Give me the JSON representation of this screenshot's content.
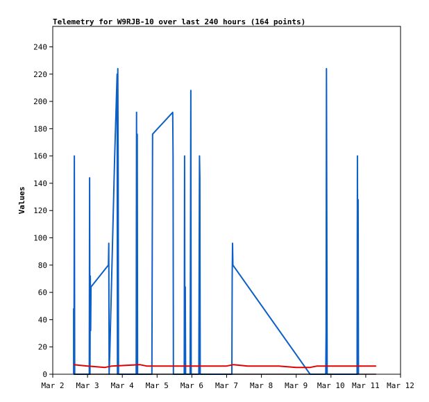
{
  "chart_data": {
    "type": "line",
    "title": "Telemetry for W9RJB-10 over last 240 hours (164 points)",
    "xlabel": "",
    "ylabel": "Values",
    "x_ticks": [
      "Mar 2",
      "Mar 3",
      "Mar 4",
      "Mar 5",
      "Mar 6",
      "Mar 7",
      "Mar 8",
      "Mar 9",
      "Mar 10",
      "Mar 11",
      "Mar 12"
    ],
    "y_ticks": [
      "0",
      "20",
      "40",
      "60",
      "80",
      "100",
      "120",
      "140",
      "160",
      "180",
      "200",
      "220",
      "240"
    ],
    "xlim": [
      2,
      12
    ],
    "ylim": [
      0,
      255
    ],
    "grid": false,
    "legend": "none",
    "series": [
      {
        "color": "#0b5fc6",
        "points": [
          [
            2.6,
            0
          ],
          [
            2.6,
            48
          ],
          [
            2.61,
            0
          ],
          [
            2.62,
            160
          ],
          [
            2.63,
            0
          ],
          [
            3.05,
            0
          ],
          [
            3.06,
            144
          ],
          [
            3.07,
            0
          ],
          [
            3.08,
            72
          ],
          [
            3.09,
            32
          ],
          [
            3.1,
            64
          ],
          [
            3.6,
            80
          ],
          [
            3.61,
            96
          ],
          [
            3.62,
            0
          ],
          [
            3.64,
            16
          ],
          [
            3.78,
            160
          ],
          [
            3.85,
            220
          ],
          [
            3.86,
            0
          ],
          [
            3.87,
            224
          ],
          [
            3.88,
            160
          ],
          [
            3.89,
            0
          ],
          [
            4.4,
            0
          ],
          [
            4.41,
            192
          ],
          [
            4.42,
            0
          ],
          [
            4.43,
            176
          ],
          [
            4.44,
            0
          ],
          [
            4.85,
            0
          ],
          [
            4.86,
            88
          ],
          [
            4.87,
            176
          ],
          [
            5.45,
            192
          ],
          [
            5.46,
            160
          ],
          [
            5.47,
            0
          ],
          [
            5.78,
            0
          ],
          [
            5.79,
            160
          ],
          [
            5.8,
            0
          ],
          [
            5.81,
            64
          ],
          [
            5.82,
            0
          ],
          [
            5.95,
            0
          ],
          [
            5.96,
            96
          ],
          [
            5.97,
            208
          ],
          [
            5.98,
            0
          ],
          [
            6.2,
            0
          ],
          [
            6.21,
            80
          ],
          [
            6.22,
            160
          ],
          [
            6.23,
            144
          ],
          [
            6.24,
            0
          ],
          [
            7.15,
            0
          ],
          [
            7.16,
            72
          ],
          [
            7.17,
            96
          ],
          [
            7.18,
            80
          ],
          [
            9.4,
            0
          ],
          [
            9.85,
            0
          ],
          [
            9.86,
            32
          ],
          [
            9.87,
            224
          ],
          [
            9.88,
            112
          ],
          [
            9.89,
            0
          ],
          [
            10.75,
            0
          ],
          [
            10.76,
            160
          ],
          [
            10.77,
            0
          ],
          [
            10.78,
            128
          ],
          [
            10.79,
            0
          ]
        ]
      },
      {
        "color": "#e00000",
        "points": [
          [
            2.6,
            7
          ],
          [
            3.0,
            6
          ],
          [
            3.5,
            5
          ],
          [
            3.7,
            6
          ],
          [
            4.5,
            7
          ],
          [
            4.7,
            6
          ],
          [
            5.5,
            6
          ],
          [
            7.0,
            6
          ],
          [
            7.2,
            7
          ],
          [
            7.6,
            6
          ],
          [
            8.5,
            6
          ],
          [
            9.0,
            5
          ],
          [
            9.4,
            5
          ],
          [
            9.6,
            6
          ],
          [
            10.5,
            6
          ],
          [
            11.3,
            6
          ]
        ]
      },
      {
        "color": "#000000",
        "points": [
          [
            2.6,
            0
          ],
          [
            11.3,
            0
          ]
        ]
      }
    ]
  }
}
